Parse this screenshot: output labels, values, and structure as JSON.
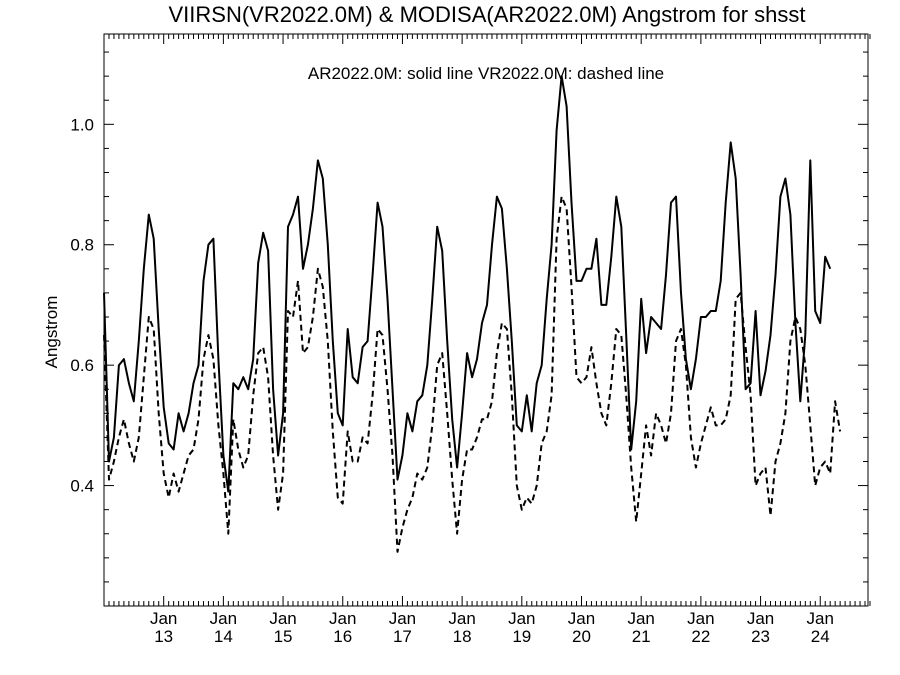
{
  "chart_data": {
    "type": "line",
    "title": "VIIRSN(VR2022.0M) & MODISA(AR2022.0M)  Angstrom for shsst",
    "annotation": "AR2022.0M: solid line   VR2022.0M: dashed line",
    "ylabel": "Angstrom",
    "xlabel": "",
    "xlim": [
      2012.0,
      2024.8
    ],
    "ylim": [
      0.2,
      1.15
    ],
    "yticks": [
      0.4,
      0.6,
      0.8,
      1.0
    ],
    "ytick_labels": [
      "0.4",
      "0.6",
      "0.8",
      "1.0"
    ],
    "xticks": [
      {
        "value": 2013.0,
        "month": "Jan",
        "year": "13"
      },
      {
        "value": 2014.0,
        "month": "Jan",
        "year": "14"
      },
      {
        "value": 2015.0,
        "month": "Jan",
        "year": "15"
      },
      {
        "value": 2016.0,
        "month": "Jan",
        "year": "16"
      },
      {
        "value": 2017.0,
        "month": "Jan",
        "year": "17"
      },
      {
        "value": 2018.0,
        "month": "Jan",
        "year": "18"
      },
      {
        "value": 2019.0,
        "month": "Jan",
        "year": "19"
      },
      {
        "value": 2020.0,
        "month": "Jan",
        "year": "20"
      },
      {
        "value": 2021.0,
        "month": "Jan",
        "year": "21"
      },
      {
        "value": 2022.0,
        "month": "Jan",
        "year": "22"
      },
      {
        "value": 2023.0,
        "month": "Jan",
        "year": "23"
      },
      {
        "value": 2024.0,
        "month": "Jan",
        "year": "24"
      }
    ],
    "x_start": 2012.0,
    "x_step": 0.08333,
    "series": [
      {
        "style": "solid",
        "values": [
          0.72,
          0.44,
          0.48,
          0.6,
          0.61,
          0.57,
          0.54,
          0.64,
          0.76,
          0.85,
          0.81,
          0.66,
          0.53,
          0.47,
          0.46,
          0.52,
          0.49,
          0.52,
          0.57,
          0.6,
          0.74,
          0.8,
          0.81,
          0.61,
          0.45,
          0.39,
          0.57,
          0.56,
          0.58,
          0.56,
          0.61,
          0.77,
          0.82,
          0.79,
          0.56,
          0.45,
          0.52,
          0.83,
          0.85,
          0.88,
          0.76,
          0.8,
          0.86,
          0.94,
          0.91,
          0.8,
          0.64,
          0.52,
          0.5,
          0.66,
          0.58,
          0.57,
          0.63,
          0.64,
          0.75,
          0.87,
          0.83,
          0.71,
          0.56,
          0.41,
          0.45,
          0.52,
          0.49,
          0.54,
          0.55,
          0.6,
          0.71,
          0.83,
          0.79,
          0.64,
          0.51,
          0.43,
          0.52,
          0.62,
          0.58,
          0.61,
          0.67,
          0.7,
          0.8,
          0.88,
          0.86,
          0.76,
          0.64,
          0.5,
          0.49,
          0.55,
          0.49,
          0.57,
          0.6,
          0.71,
          0.8,
          0.99,
          1.08,
          1.03,
          0.87,
          0.74,
          0.74,
          0.76,
          0.76,
          0.81,
          0.7,
          0.7,
          0.78,
          0.88,
          0.83,
          0.65,
          0.46,
          0.54,
          0.71,
          0.62,
          0.68,
          0.67,
          0.66,
          0.75,
          0.87,
          0.88,
          0.72,
          0.61,
          0.56,
          0.61,
          0.68,
          0.68,
          0.69,
          0.69,
          0.74,
          0.87,
          0.97,
          0.91,
          0.75,
          0.56,
          0.57,
          0.69,
          0.55,
          0.59,
          0.65,
          0.75,
          0.88,
          0.91,
          0.85,
          0.67,
          0.54,
          0.65,
          0.94,
          0.69,
          0.67,
          0.78,
          0.76
        ]
      },
      {
        "style": "dashed",
        "values": [
          0.65,
          0.41,
          0.44,
          0.48,
          0.51,
          0.47,
          0.44,
          0.48,
          0.58,
          0.68,
          0.66,
          0.52,
          0.42,
          0.38,
          0.42,
          0.39,
          0.42,
          0.45,
          0.46,
          0.51,
          0.61,
          0.65,
          0.61,
          0.5,
          0.42,
          0.32,
          0.51,
          0.46,
          0.43,
          0.45,
          0.55,
          0.62,
          0.63,
          0.58,
          0.45,
          0.36,
          0.42,
          0.69,
          0.68,
          0.74,
          0.62,
          0.63,
          0.68,
          0.76,
          0.73,
          0.64,
          0.49,
          0.38,
          0.37,
          0.49,
          0.44,
          0.44,
          0.48,
          0.47,
          0.55,
          0.66,
          0.65,
          0.56,
          0.45,
          0.29,
          0.33,
          0.36,
          0.38,
          0.42,
          0.41,
          0.43,
          0.5,
          0.6,
          0.62,
          0.52,
          0.41,
          0.32,
          0.41,
          0.46,
          0.46,
          0.48,
          0.51,
          0.51,
          0.54,
          0.62,
          0.67,
          0.66,
          0.55,
          0.4,
          0.36,
          0.38,
          0.37,
          0.4,
          0.47,
          0.49,
          0.55,
          0.81,
          0.88,
          0.86,
          0.73,
          0.58,
          0.57,
          0.58,
          0.63,
          0.57,
          0.52,
          0.5,
          0.57,
          0.66,
          0.65,
          0.55,
          0.43,
          0.34,
          0.42,
          0.5,
          0.45,
          0.52,
          0.5,
          0.47,
          0.52,
          0.64,
          0.66,
          0.6,
          0.48,
          0.43,
          0.47,
          0.5,
          0.53,
          0.5,
          0.5,
          0.51,
          0.55,
          0.71,
          0.72,
          0.63,
          0.55,
          0.4,
          0.42,
          0.43,
          0.35,
          0.44,
          0.47,
          0.52,
          0.64,
          0.68,
          0.66,
          0.6,
          0.5,
          0.4,
          0.43,
          0.44,
          0.42,
          0.54,
          0.49
        ]
      }
    ],
    "colors": {
      "line": "#000000",
      "axis": "#000000",
      "background": "#ffffff"
    }
  }
}
